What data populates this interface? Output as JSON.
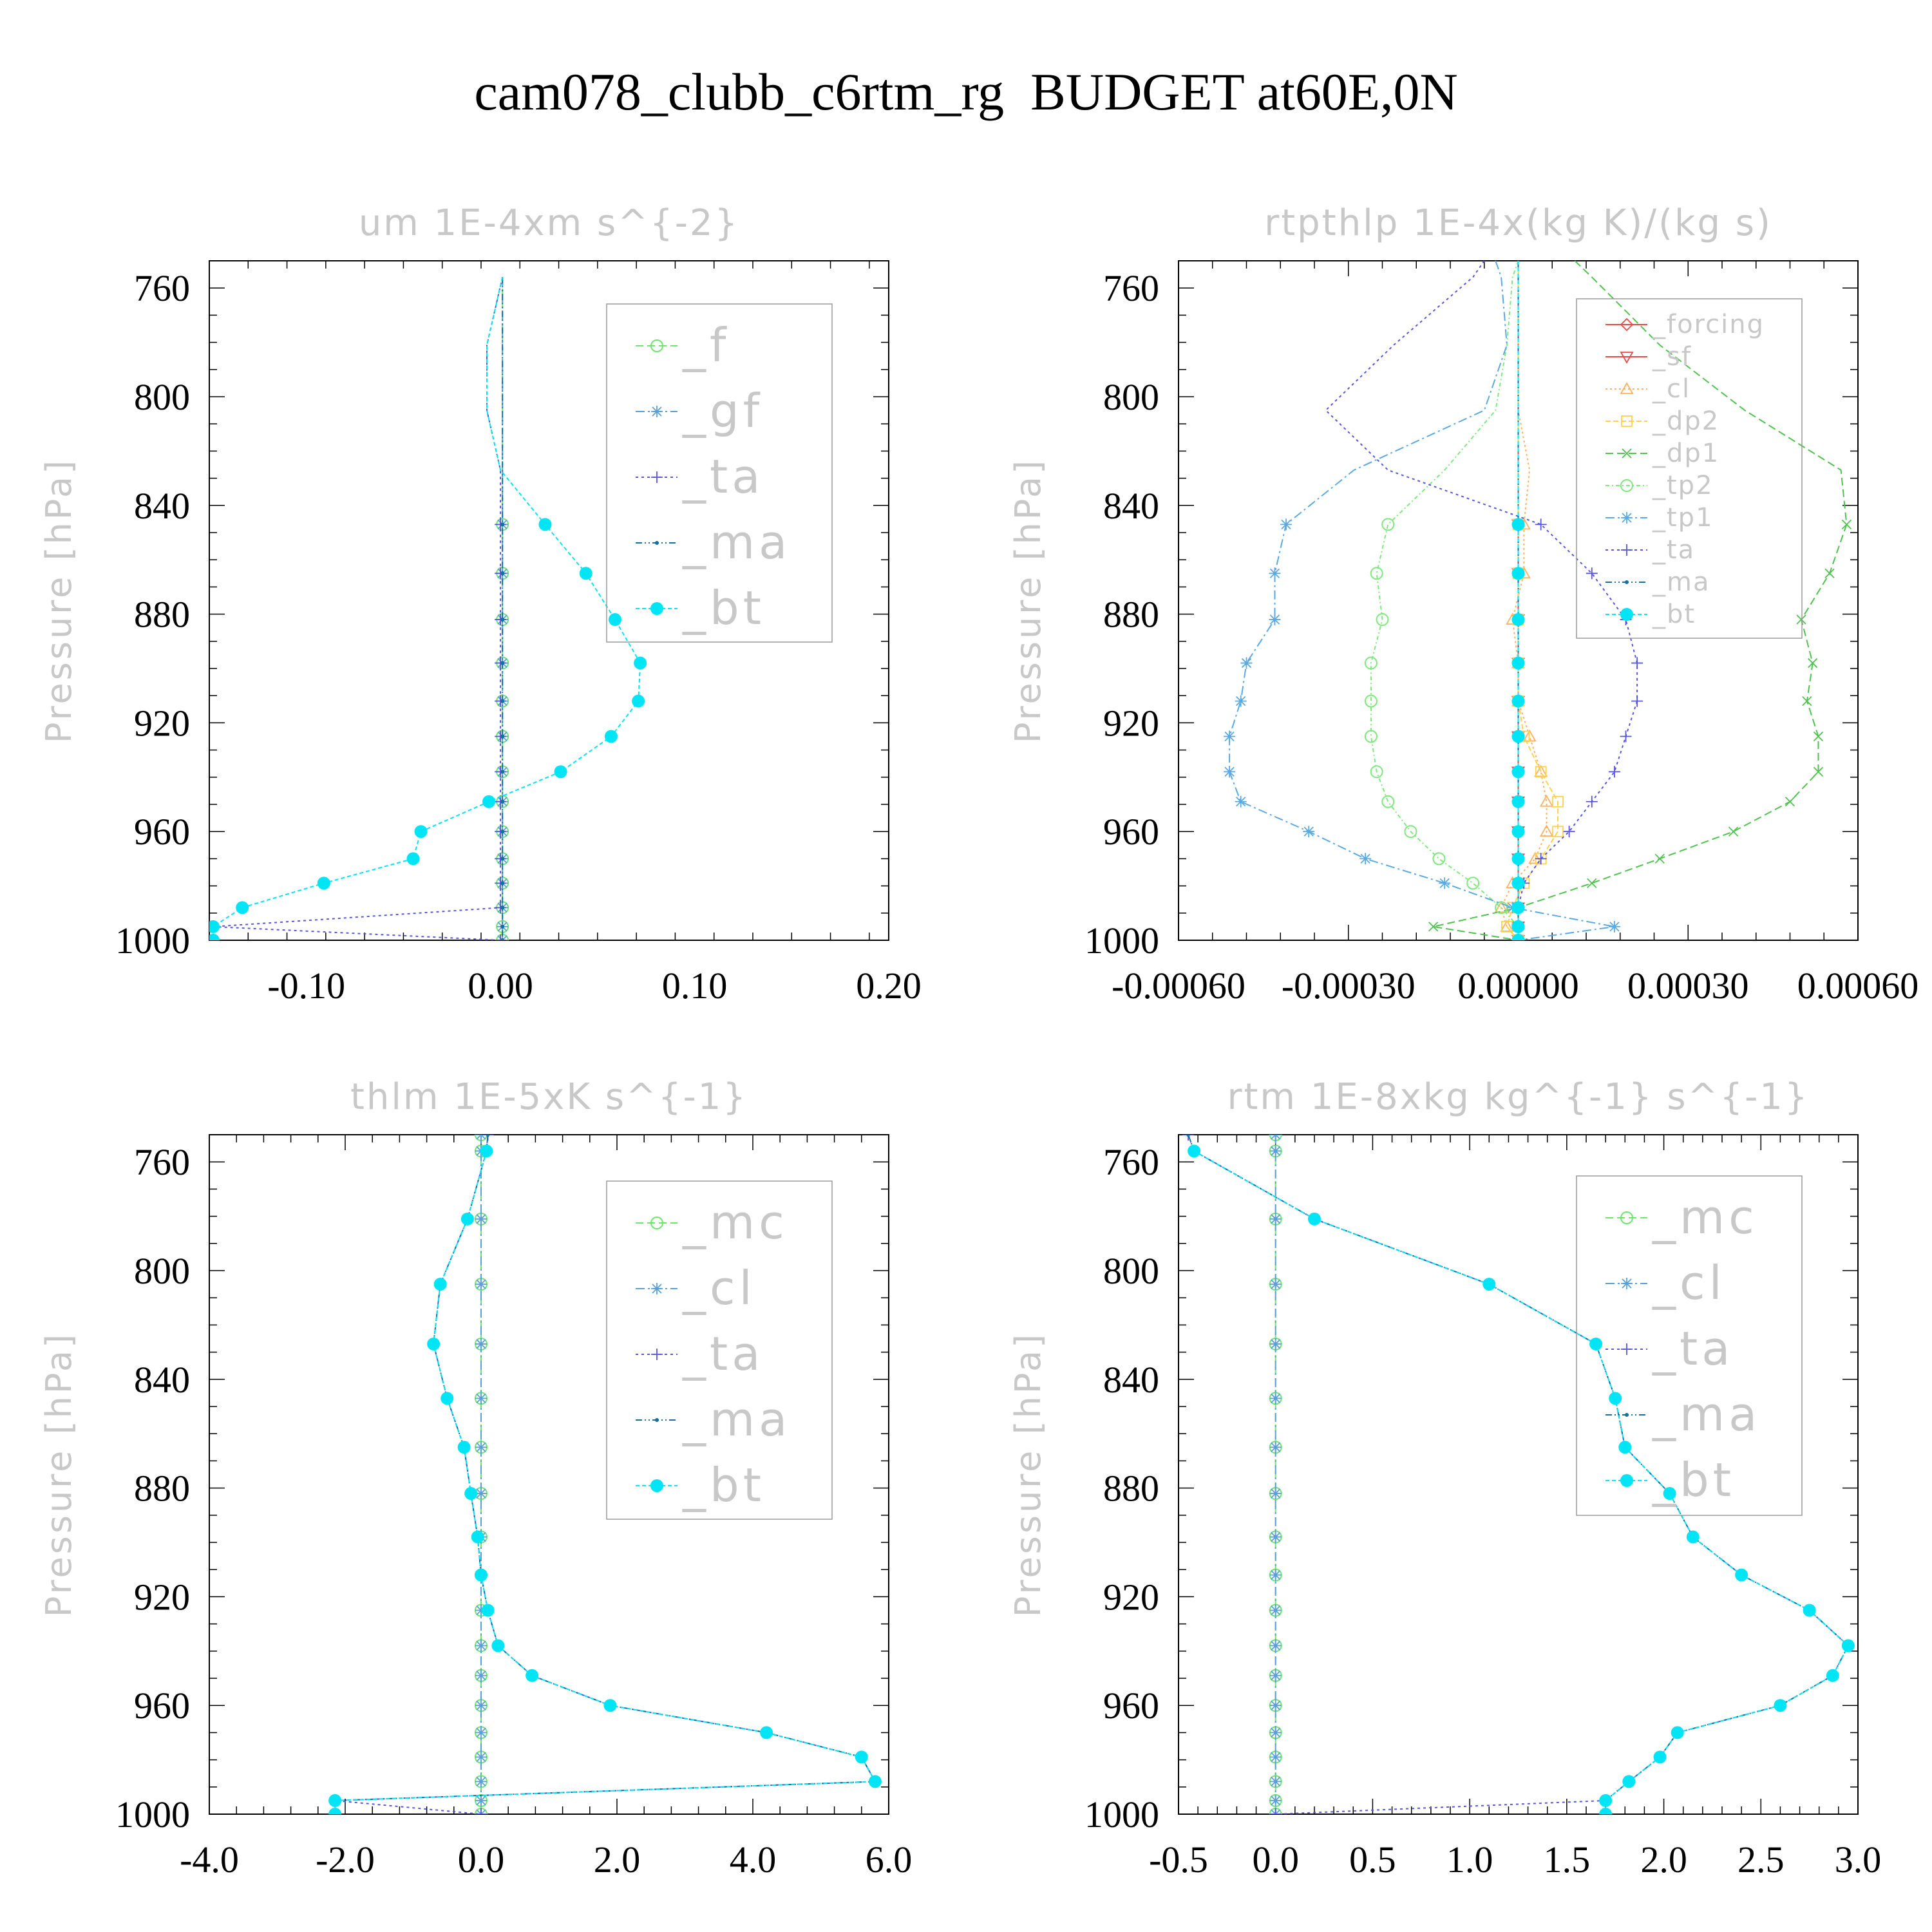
{
  "page_title": "cam078_clubb_c6rtm_rg  BUDGET at60E,0N",
  "colors": {
    "_f": "#6ee66e",
    "_gf": "#5a9fd8",
    "_ta": "#5555dd",
    "_ma": "#1570a0",
    "_bt": "#00e5f5",
    "_forcing": "#e84a4a",
    "_sf": "#e84a4a",
    "_cl_rt": "#ffb060",
    "_dp2": "#ffd24a",
    "_dp1": "#4fc24f",
    "_tp2": "#7de87d",
    "_tp1": "#5aa9e0",
    "_mc": "#6ee66e",
    "_cl": "#5a9fd8",
    "text_dim": "#c8c8c8"
  },
  "chart_data": [
    {
      "type": "line",
      "title": "um  1E-4xm s^{-2}",
      "ylabel": "Pressure [hPa]",
      "xlabel": "",
      "xlim": [
        -0.15,
        0.2
      ],
      "ylim": [
        1000,
        750
      ],
      "xticks": [
        "-0.10",
        "0.00",
        "0.10",
        "0.20"
      ],
      "xtick_values": [
        -0.1,
        0.0,
        0.1,
        0.2
      ],
      "yticks": [
        "760",
        "800",
        "840",
        "880",
        "920",
        "960",
        "1000"
      ],
      "ytick_values": [
        760,
        800,
        840,
        880,
        920,
        960,
        1000
      ],
      "legend": [
        "_f",
        "_gf",
        "_ta",
        "_ma",
        "_bt"
      ],
      "legend_position": "top-right",
      "levels": [
        756,
        781,
        805,
        827,
        847,
        865,
        882,
        898,
        912,
        925,
        938,
        949,
        960,
        970,
        979,
        988,
        995,
        1000
      ],
      "series": [
        {
          "name": "_f",
          "marker": "circle-open",
          "dash": "12 6",
          "values": [
            0.001,
            0.001,
            0.001,
            0.001,
            0.001,
            0.001,
            0.001,
            0.001,
            0.001,
            0.001,
            0.001,
            0.001,
            0.001,
            0.001,
            0.001,
            0.001,
            0.001,
            0.001
          ]
        },
        {
          "name": "_gf",
          "marker": "asterisk",
          "dash": "14 5 3 5",
          "values": [
            0.001,
            0.001,
            0.001,
            0.001,
            0.001,
            0.001,
            0.001,
            0.001,
            0.001,
            0.001,
            0.001,
            0.001,
            0.001,
            0.001,
            0.001,
            0.001,
            0.001,
            0.001
          ]
        },
        {
          "name": "_ta",
          "marker": "plus",
          "dash": "4 5",
          "values": [
            0.001,
            -0.007,
            -0.007,
            0.0,
            0.0,
            0.0,
            0.0,
            0.0,
            0.0,
            0.0,
            0.0,
            0.0,
            0.0,
            0.0,
            0.0,
            0.0,
            -0.148,
            0.0
          ]
        },
        {
          "name": "_ma",
          "marker": "dot",
          "dash": "10 4 2 4 2 4",
          "values": [
            0.001,
            0.001,
            0.001,
            0.001,
            0.001,
            0.001,
            0.001,
            0.001,
            0.001,
            0.001,
            0.001,
            0.001,
            0.001,
            0.001,
            0.001,
            0.001,
            0.001,
            0.001
          ]
        },
        {
          "name": "_bt",
          "marker": "filled-circle",
          "dash": "6 4",
          "values": [
            0.001,
            -0.007,
            -0.007,
            0.0,
            0.023,
            0.044,
            0.059,
            0.072,
            0.071,
            0.057,
            0.031,
            -0.006,
            -0.041,
            -0.045,
            -0.091,
            -0.133,
            -0.148,
            -0.148
          ]
        }
      ]
    },
    {
      "type": "line",
      "title": "rtpthlp  1E-4x(kg K)/(kg s)",
      "ylabel": "Pressure [hPa]",
      "xlabel": "",
      "xlim": [
        -0.0006,
        0.0006
      ],
      "ylim": [
        1000,
        750
      ],
      "xticks": [
        "-0.00060",
        "-0.00030",
        "0.00000",
        "0.00030",
        "0.00060"
      ],
      "xtick_values": [
        -0.0006,
        -0.0003,
        0.0,
        0.0003,
        0.0006
      ],
      "yticks": [
        "760",
        "800",
        "840",
        "880",
        "920",
        "960",
        "1000"
      ],
      "ytick_values": [
        760,
        800,
        840,
        880,
        920,
        960,
        1000
      ],
      "legend": [
        "_forcing",
        "_sf",
        "_cl",
        "_dp2",
        "_dp1",
        "_tp2",
        "_tp1",
        "_ta",
        "_ma",
        "_bt"
      ],
      "legend_position": "top-right",
      "levels": [
        750,
        756,
        781,
        805,
        827,
        847,
        865,
        882,
        898,
        912,
        925,
        938,
        949,
        960,
        970,
        979,
        988,
        995,
        1000
      ],
      "series": [
        {
          "name": "_forcing",
          "color_key": "_forcing",
          "marker": "diamond-open",
          "dash": "",
          "values": [
            0,
            0,
            0,
            0,
            0,
            0,
            0,
            0,
            0,
            0,
            0,
            0,
            0,
            0,
            0,
            0,
            0,
            0,
            0
          ]
        },
        {
          "name": "_sf",
          "color_key": "_sf",
          "marker": "triangle-down-open",
          "dash": "",
          "values": [
            0,
            0,
            0,
            0,
            0,
            0,
            0,
            0,
            0,
            0,
            0,
            0,
            0,
            0,
            0,
            0,
            0,
            0,
            0
          ]
        },
        {
          "name": "_cl",
          "color_key": "_cl_rt",
          "marker": "triangle-open",
          "dash": "3 4",
          "values": [
            0.0,
            0.0,
            0.0,
            0.0,
            2e-05,
            1e-05,
            1e-05,
            -1e-05,
            0.0,
            0.0,
            2e-05,
            4e-05,
            5e-05,
            5e-05,
            3e-05,
            -1e-05,
            -3e-05,
            -2e-05,
            0.0
          ]
        },
        {
          "name": "_dp2",
          "color_key": "_dp2",
          "marker": "square-open",
          "dash": "8 4",
          "values": [
            0.0,
            0.0,
            0.0,
            0.0,
            0.0,
            0.0,
            0.0,
            0.0,
            0.0,
            0.0,
            1e-05,
            4e-05,
            7e-05,
            7e-05,
            4e-05,
            1e-05,
            -1e-05,
            -2e-05,
            0.0
          ]
        },
        {
          "name": "_dp1",
          "color_key": "_dp1",
          "marker": "x",
          "dash": "12 6",
          "values": [
            0.0001,
            0.00013,
            0.00025,
            0.0004,
            0.00057,
            0.00058,
            0.00055,
            0.0005,
            0.00052,
            0.00051,
            0.00053,
            0.00053,
            0.00048,
            0.00038,
            0.00025,
            0.00013,
            0.0,
            -0.00015,
            0.0
          ]
        },
        {
          "name": "_tp2",
          "color_key": "_tp2",
          "marker": "circle-open",
          "dash": "6 4 2 4",
          "values": [
            0.0,
            -1e-05,
            -2e-05,
            -4e-05,
            -0.00013,
            -0.00023,
            -0.00025,
            -0.00024,
            -0.00026,
            -0.00026,
            -0.00026,
            -0.00025,
            -0.00023,
            -0.00019,
            -0.00014,
            -8e-05,
            -3e-05,
            0.0,
            0.0
          ]
        },
        {
          "name": "_tp1",
          "color_key": "_tp1",
          "marker": "asterisk",
          "dash": "14 5 3 5",
          "values": [
            -4e-05,
            -3e-05,
            -2e-05,
            -6e-05,
            -0.00029,
            -0.00041,
            -0.00043,
            -0.00043,
            -0.00048,
            -0.00049,
            -0.00051,
            -0.00051,
            -0.00049,
            -0.00037,
            -0.00027,
            -0.00013,
            -1e-05,
            0.00017,
            0.0
          ]
        },
        {
          "name": "_ta",
          "color_key": "_ta",
          "marker": "plus",
          "dash": "4 5",
          "values": [
            -6e-05,
            -8e-05,
            -0.00022,
            -0.00034,
            -0.00023,
            4e-05,
            0.00013,
            0.00019,
            0.00021,
            0.00021,
            0.00019,
            0.00017,
            0.00013,
            9e-05,
            4e-05,
            1e-05,
            0.0,
            0.0,
            0.0
          ]
        },
        {
          "name": "_ma",
          "color_key": "_ma",
          "marker": "dot",
          "dash": "10 4 2 4 2 4",
          "values": [
            0,
            0,
            0,
            0,
            0,
            0,
            0,
            0,
            0,
            0,
            0,
            0,
            0,
            0,
            0,
            0,
            0,
            0,
            0
          ]
        },
        {
          "name": "_bt",
          "color_key": "_bt",
          "marker": "filled-circle",
          "dash": "6 4",
          "values": [
            0,
            0,
            0,
            0,
            0,
            0,
            0,
            0,
            0,
            0,
            0,
            0,
            0,
            0,
            0,
            0,
            0,
            0,
            0
          ]
        }
      ]
    },
    {
      "type": "line",
      "title": "thlm  1E-5xK s^{-1}",
      "ylabel": "Pressure [hPa]",
      "xlabel": "",
      "xlim": [
        -4.0,
        6.0
      ],
      "ylim": [
        1000,
        750
      ],
      "xticks": [
        "-4.0",
        "-2.0",
        "0.0",
        "2.0",
        "4.0",
        "6.0"
      ],
      "xtick_values": [
        -4.0,
        -2.0,
        0.0,
        2.0,
        4.0,
        6.0
      ],
      "yticks": [
        "760",
        "800",
        "840",
        "880",
        "920",
        "960",
        "1000"
      ],
      "ytick_values": [
        760,
        800,
        840,
        880,
        920,
        960,
        1000
      ],
      "legend": [
        "_mc",
        "_cl",
        "_ta",
        "_ma",
        "_bt"
      ],
      "legend_position": "top-right",
      "levels": [
        750,
        756,
        781,
        805,
        827,
        847,
        865,
        882,
        898,
        912,
        925,
        938,
        949,
        960,
        970,
        979,
        988,
        995,
        1000
      ],
      "series": [
        {
          "name": "_mc",
          "marker": "circle-open",
          "dash": "12 6",
          "values": [
            0.0,
            0.0,
            0.0,
            0.0,
            0.0,
            0.0,
            0.0,
            0.0,
            0.0,
            0.0,
            0.0,
            0.0,
            0.0,
            0.0,
            0.0,
            0.0,
            0.0,
            0.0,
            0.0
          ]
        },
        {
          "name": "_cl",
          "marker": "asterisk",
          "dash": "14 5 3 5",
          "values": [
            0.0,
            0.0,
            0.0,
            0.0,
            0.0,
            0.0,
            0.0,
            0.0,
            0.0,
            0.0,
            0.0,
            0.0,
            0.0,
            0.0,
            0.0,
            0.0,
            0.0,
            0.0,
            0.0
          ]
        },
        {
          "name": "_ta",
          "marker": "plus",
          "dash": "4 5",
          "values": [
            0.1,
            0.08,
            -0.2,
            -0.6,
            -0.7,
            -0.5,
            -0.25,
            -0.15,
            -0.05,
            0.0,
            0.1,
            0.25,
            0.75,
            1.9,
            4.2,
            5.6,
            5.8,
            -2.15,
            0.0
          ]
        },
        {
          "name": "_ma",
          "marker": "dot",
          "dash": "10 4 2 4 2 4",
          "values": [
            0.1,
            0.08,
            -0.2,
            -0.6,
            -0.7,
            -0.5,
            -0.25,
            -0.15,
            -0.05,
            0.0,
            0.1,
            0.25,
            0.75,
            1.9,
            4.2,
            5.6,
            5.8,
            -2.15,
            -2.15
          ]
        },
        {
          "name": "_bt",
          "marker": "filled-circle",
          "dash": "6 4",
          "values": [
            null,
            0.08,
            -0.2,
            -0.6,
            -0.7,
            -0.5,
            -0.25,
            -0.15,
            -0.05,
            0.0,
            0.1,
            0.25,
            0.75,
            1.9,
            4.2,
            5.6,
            5.8,
            -2.15,
            -2.15
          ]
        }
      ]
    },
    {
      "type": "line",
      "title": "rtm  1E-8xkg kg^{-1} s^{-1}",
      "ylabel": "Pressure [hPa]",
      "xlabel": "",
      "xlim": [
        -0.5,
        3.0
      ],
      "ylim": [
        1000,
        750
      ],
      "xticks": [
        "-0.5",
        "0.0",
        "0.5",
        "1.0",
        "1.5",
        "2.0",
        "2.5",
        "3.0"
      ],
      "xtick_values": [
        -0.5,
        0.0,
        0.5,
        1.0,
        1.5,
        2.0,
        2.5,
        3.0
      ],
      "yticks": [
        "760",
        "800",
        "840",
        "880",
        "920",
        "960",
        "1000"
      ],
      "ytick_values": [
        760,
        800,
        840,
        880,
        920,
        960,
        1000
      ],
      "legend": [
        "_mc",
        "_cl",
        "_ta",
        "_ma",
        "_bt"
      ],
      "legend_position": "top-right",
      "levels": [
        750,
        756,
        781,
        805,
        827,
        847,
        865,
        882,
        898,
        912,
        925,
        938,
        949,
        960,
        970,
        979,
        988,
        995,
        1000
      ],
      "series": [
        {
          "name": "_mc",
          "marker": "circle-open",
          "dash": "12 6",
          "values": [
            0,
            0,
            0,
            0,
            0,
            0,
            0,
            0,
            0,
            0,
            0,
            0,
            0,
            0,
            0,
            0,
            0,
            0,
            0
          ]
        },
        {
          "name": "_cl",
          "marker": "asterisk",
          "dash": "14 5 3 5",
          "values": [
            0,
            0,
            0,
            0,
            0,
            0,
            0,
            0,
            0,
            0,
            0,
            0,
            0,
            0,
            0,
            0,
            0,
            0,
            0
          ]
        },
        {
          "name": "_ta",
          "marker": "plus",
          "dash": "4 5",
          "values": [
            -0.45,
            -0.42,
            0.2,
            1.1,
            1.65,
            1.75,
            1.8,
            2.03,
            2.15,
            2.4,
            2.75,
            2.95,
            2.87,
            2.6,
            2.07,
            1.98,
            1.82,
            1.7,
            0.0
          ]
        },
        {
          "name": "_ma",
          "marker": "dot",
          "dash": "10 4 2 4 2 4",
          "values": [
            -0.45,
            -0.42,
            0.2,
            1.1,
            1.65,
            1.75,
            1.8,
            2.03,
            2.15,
            2.4,
            2.75,
            2.95,
            2.87,
            2.6,
            2.07,
            1.98,
            1.82,
            1.7,
            1.7
          ]
        },
        {
          "name": "_bt",
          "marker": "filled-circle",
          "dash": "6 4",
          "values": [
            null,
            -0.42,
            0.2,
            1.1,
            1.65,
            1.75,
            1.8,
            2.03,
            2.15,
            2.4,
            2.75,
            2.95,
            2.87,
            2.6,
            2.07,
            1.98,
            1.82,
            1.7,
            1.7
          ]
        }
      ]
    }
  ]
}
